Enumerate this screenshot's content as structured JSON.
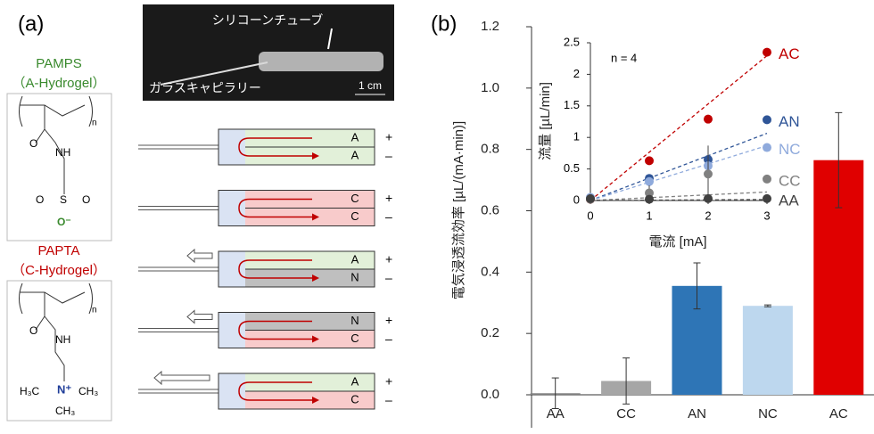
{
  "panel_a": {
    "label": "(a)",
    "structures": [
      {
        "name": "PAMPS",
        "subtitle": "（A-Hydrogel）",
        "atoms": [
          "n",
          "O",
          "NH",
          "S",
          "O",
          "O",
          "O⁻"
        ]
      },
      {
        "name": "PAPTA",
        "subtitle": "（C-Hydrogel）",
        "atoms": [
          "n",
          "O",
          "NH",
          "N⁺",
          "H₃C",
          "CH₃",
          "CH₃"
        ]
      }
    ],
    "photo": {
      "tube": "シリコーンチューブ",
      "capillary": "ガラスキャピラリー",
      "scale": "1 cm"
    },
    "devices": [
      {
        "top": "A",
        "bottom": "A"
      },
      {
        "top": "C",
        "bottom": "C"
      },
      {
        "top": "A",
        "bottom": "N"
      },
      {
        "top": "N",
        "bottom": "C"
      },
      {
        "top": "A",
        "bottom": "C"
      }
    ],
    "plus": "+",
    "minus": "–"
  },
  "chart_data": [
    {
      "type": "bar",
      "label": "(b)",
      "y_label": "電気浸透流効率 [µL/(mA·min)]",
      "categories": [
        "AA",
        "CC",
        "AN",
        "NC",
        "AC"
      ],
      "values": [
        0.005,
        0.045,
        0.355,
        0.29,
        0.765
      ],
      "errors": [
        0.05,
        0.075,
        0.075,
        0.003,
        0.155
      ],
      "colors": [
        "#7f7f7f",
        "#a6a6a6",
        "#2e75b6",
        "#bdd7ee",
        "#e00000"
      ],
      "ylim": [
        0,
        1.2
      ],
      "yticks": [
        {
          "value": 0,
          "label": "0.0"
        },
        0.2,
        0.4,
        0.6,
        0.8,
        {
          "value": 1,
          "label": "1.0"
        },
        1.2
      ]
    },
    {
      "type": "scatter",
      "x_label": "電流 [mA]",
      "y_label": "流量 [µL/min]",
      "annotation": "n = 4",
      "x": [
        0,
        1,
        2,
        3
      ],
      "xlim": [
        0,
        3
      ],
      "ylim": [
        0,
        2.5
      ],
      "xticks": [
        0,
        1,
        2,
        3
      ],
      "yticks": [
        0,
        0.5,
        1,
        1.5,
        2,
        2.5
      ],
      "series": [
        {
          "name": "AC",
          "color": "#c00000",
          "values": [
            0.02,
            0.63,
            1.29,
            2.35
          ],
          "errors": [
            0.02,
            0.03,
            0.06,
            0.03
          ]
        },
        {
          "name": "AN",
          "color": "#2f5597",
          "values": [
            0.03,
            0.35,
            0.65,
            1.28
          ],
          "errors": [
            0.02,
            0.05,
            0.22,
            0.03
          ]
        },
        {
          "name": "NC",
          "color": "#8faadc",
          "values": [
            0.05,
            0.3,
            0.55,
            0.84
          ],
          "errors": [
            0.02,
            0.03,
            0.05,
            0.03
          ]
        },
        {
          "name": "CC",
          "color": "#808080",
          "values": [
            0.02,
            0.12,
            0.42,
            0.34
          ],
          "errors": [
            0.02,
            0.12,
            0.43,
            0.05
          ]
        },
        {
          "name": "AA",
          "color": "#404040",
          "values": [
            0.03,
            0.02,
            0.03,
            0.03
          ],
          "errors": [
            0.02,
            0.02,
            0.02,
            0.02
          ]
        }
      ]
    }
  ]
}
